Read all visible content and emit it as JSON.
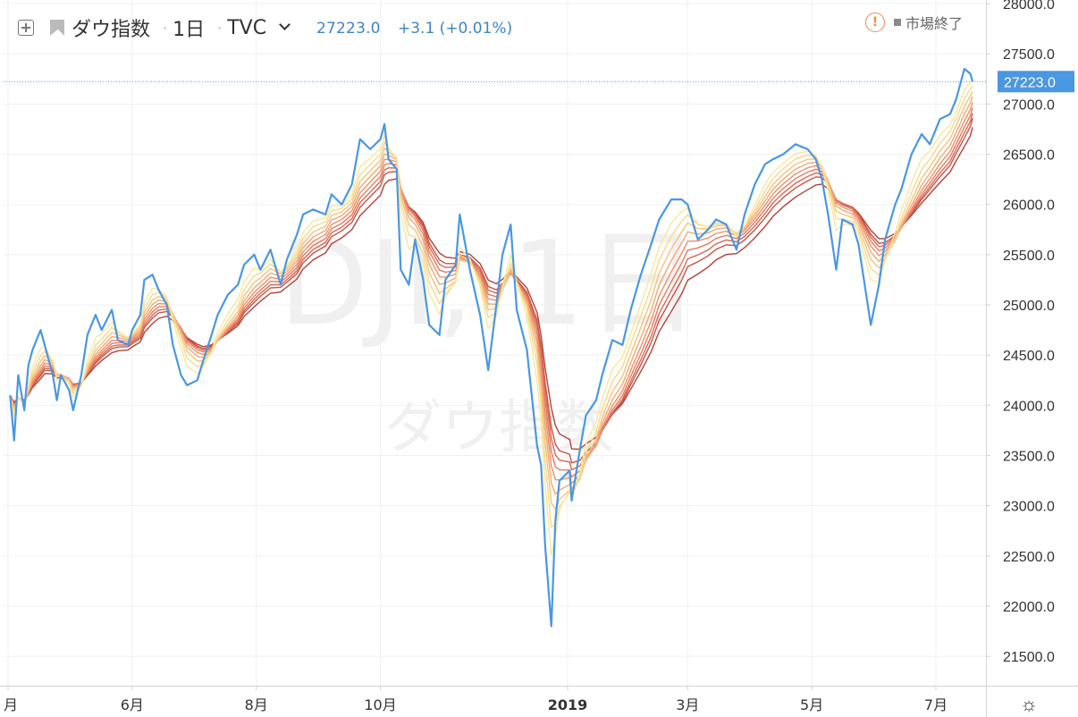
{
  "header": {
    "symbol_title": "ダウ指数",
    "interval": "1日",
    "exchange": "TVC",
    "last_price": "27223.0",
    "change": "+3.1 (+0.01%)",
    "market_status": "市場終了",
    "warning_glyph": "!"
  },
  "watermark": {
    "line1": "DJI, 1日",
    "line2": "ダウ指数"
  },
  "price_tag": "27223.0",
  "colors": {
    "price_line": "#4a97e3",
    "accent": "#3d85c6",
    "warning": "#f08a47",
    "ribbon": [
      "#f9e79f",
      "#f8d98a",
      "#f5c27e",
      "#f2a874",
      "#ee906a",
      "#e67b5f",
      "#d96752",
      "#c85445",
      "#b2423a"
    ]
  },
  "icons": {
    "add": "plus-box-icon",
    "symbol_flag": "flag-icon",
    "interval_menu": "chevron-down-icon",
    "status": "warning-circle-icon",
    "settings": "gear-icon"
  },
  "settings_glyph": "☼",
  "chart_data": {
    "type": "line",
    "title": "",
    "xlabel": "",
    "ylabel": "",
    "ylim": [
      21300,
      28050
    ],
    "x_ticks": [
      "月",
      "6月",
      "8月",
      "10月",
      "2019",
      "3月",
      "5月",
      "7月"
    ],
    "y_ticks": [
      "21500.0",
      "22000.0",
      "22500.0",
      "23000.0",
      "23500.0",
      "24000.0",
      "24500.0",
      "25000.0",
      "25500.0",
      "26000.0",
      "26500.0",
      "27000.0",
      "27500.0",
      "28000.0"
    ],
    "grid": true,
    "last_value": 27223.0,
    "series": [
      {
        "role": "price",
        "x": [
          "2018-04-02",
          "2018-04-04",
          "2018-04-06",
          "2018-04-09",
          "2018-04-11",
          "2018-04-13",
          "2018-04-17",
          "2018-04-19",
          "2018-04-23",
          "2018-04-25",
          "2018-04-27",
          "2018-05-01",
          "2018-05-03",
          "2018-05-07",
          "2018-05-10",
          "2018-05-14",
          "2018-05-17",
          "2018-05-22",
          "2018-05-25",
          "2018-05-30",
          "2018-06-01",
          "2018-06-05",
          "2018-06-07",
          "2018-06-11",
          "2018-06-14",
          "2018-06-18",
          "2018-06-21",
          "2018-06-25",
          "2018-06-28",
          "2018-07-03",
          "2018-07-06",
          "2018-07-10",
          "2018-07-13",
          "2018-07-18",
          "2018-07-23",
          "2018-07-26",
          "2018-07-31",
          "2018-08-03",
          "2018-08-08",
          "2018-08-13",
          "2018-08-16",
          "2018-08-21",
          "2018-08-24",
          "2018-08-29",
          "2018-09-04",
          "2018-09-07",
          "2018-09-12",
          "2018-09-17",
          "2018-09-21",
          "2018-09-26",
          "2018-10-01",
          "2018-10-03",
          "2018-10-05",
          "2018-10-09",
          "2018-10-11",
          "2018-10-15",
          "2018-10-18",
          "2018-10-22",
          "2018-10-25",
          "2018-10-30",
          "2018-11-02",
          "2018-11-07",
          "2018-11-09",
          "2018-11-14",
          "2018-11-19",
          "2018-11-23",
          "2018-11-27",
          "2018-11-30",
          "2018-12-04",
          "2018-12-07",
          "2018-12-12",
          "2018-12-17",
          "2018-12-19",
          "2018-12-21",
          "2018-12-24",
          "2018-12-26",
          "2018-12-28",
          "2019-01-02",
          "2019-01-03",
          "2019-01-07",
          "2019-01-10",
          "2019-01-15",
          "2019-01-18",
          "2019-01-23",
          "2019-01-28",
          "2019-02-01",
          "2019-02-06",
          "2019-02-11",
          "2019-02-15",
          "2019-02-21",
          "2019-02-26",
          "2019-03-01",
          "2019-03-06",
          "2019-03-11",
          "2019-03-15",
          "2019-03-20",
          "2019-03-25",
          "2019-03-29",
          "2019-04-03",
          "2019-04-08",
          "2019-04-12",
          "2019-04-17",
          "2019-04-23",
          "2019-04-29",
          "2019-05-03",
          "2019-05-06",
          "2019-05-09",
          "2019-05-13",
          "2019-05-16",
          "2019-05-21",
          "2019-05-24",
          "2019-05-30",
          "2019-06-03",
          "2019-06-06",
          "2019-06-11",
          "2019-06-14",
          "2019-06-19",
          "2019-06-24",
          "2019-06-28",
          "2019-07-03",
          "2019-07-08",
          "2019-07-11",
          "2019-07-15",
          "2019-07-18",
          "2019-07-19"
        ],
        "values": [
          24100,
          23650,
          24300,
          23950,
          24400,
          24550,
          24750,
          24600,
          24300,
          24050,
          24300,
          24150,
          23950,
          24300,
          24700,
          24900,
          24750,
          24950,
          24650,
          24600,
          24750,
          24900,
          25250,
          25300,
          25150,
          25000,
          24600,
          24300,
          24200,
          24250,
          24450,
          24700,
          24900,
          25100,
          25200,
          25400,
          25500,
          25350,
          25550,
          25200,
          25450,
          25700,
          25900,
          25950,
          25900,
          26100,
          26000,
          26200,
          26650,
          26550,
          26650,
          26800,
          26450,
          26350,
          25350,
          25200,
          25650,
          25250,
          24800,
          24700,
          25250,
          25400,
          25900,
          25350,
          24900,
          24350,
          25000,
          25500,
          25800,
          24950,
          24550,
          23600,
          23400,
          22600,
          21800,
          22850,
          23250,
          23350,
          23050,
          23550,
          23900,
          24050,
          24300,
          24650,
          24600,
          24950,
          25300,
          25600,
          25850,
          26050,
          26050,
          26000,
          25650,
          25750,
          25850,
          25800,
          25550,
          25900,
          26200,
          26400,
          26450,
          26500,
          26600,
          26550,
          26450,
          26250,
          25900,
          25350,
          25850,
          25800,
          25600,
          24800,
          25200,
          25650,
          26000,
          26150,
          26500,
          26700,
          26600,
          26850,
          26900,
          27050,
          27350,
          27300,
          27223
        ]
      }
    ],
    "ribbon": {
      "description_visible": false,
      "count": 9
    }
  }
}
